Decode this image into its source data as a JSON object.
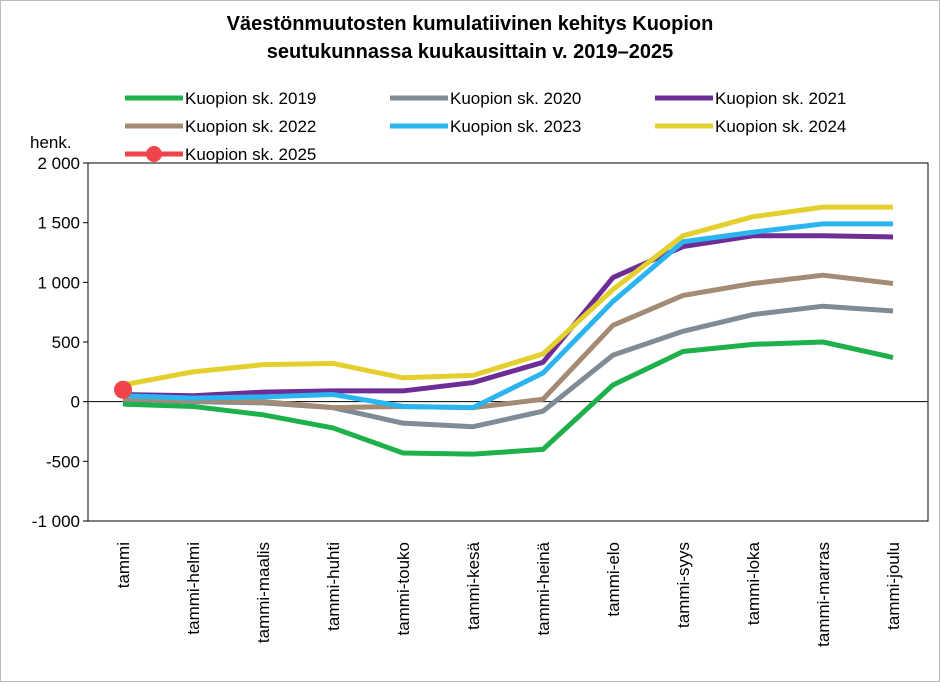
{
  "chart_data": {
    "type": "line",
    "title_lines": [
      "Väestönmuutosten kumulatiivinen kehitys Kuopion",
      "seutukunnassa kuukausittain v. 2019–2025"
    ],
    "y_label": "henk.",
    "categories": [
      "tammi",
      "tammi-helmi",
      "tammi-maalis",
      "tammi-huhti",
      "tammi-touko",
      "tammi-kesä",
      "tammi-heinä",
      "tammi-elo",
      "tammi-syys",
      "tammi-loka",
      "tammi-marras",
      "tammi-joulu"
    ],
    "series": [
      {
        "name": "Kuopion sk. 2019",
        "color": "#1db04b",
        "values": [
          -20,
          -40,
          -110,
          -220,
          -430,
          -440,
          -400,
          140,
          420,
          480,
          500,
          370
        ]
      },
      {
        "name": "Kuopion sk. 2020",
        "color": "#7f8c96",
        "values": [
          20,
          0,
          -10,
          -50,
          -180,
          -210,
          -80,
          390,
          590,
          730,
          800,
          760
        ]
      },
      {
        "name": "Kuopion sk. 2021",
        "color": "#6e2d96",
        "values": [
          60,
          50,
          80,
          90,
          90,
          160,
          330,
          1040,
          1300,
          1390,
          1390,
          1380
        ]
      },
      {
        "name": "Kuopion sk. 2022",
        "color": "#a48b75",
        "values": [
          30,
          10,
          0,
          -50,
          -40,
          -50,
          20,
          640,
          890,
          990,
          1060,
          990
        ]
      },
      {
        "name": "Kuopion sk. 2023",
        "color": "#2ab5f0",
        "values": [
          50,
          30,
          40,
          60,
          -40,
          -50,
          240,
          840,
          1340,
          1420,
          1490,
          1490
        ]
      },
      {
        "name": "Kuopion sk. 2024",
        "color": "#e3cf2e",
        "values": [
          140,
          250,
          310,
          320,
          200,
          220,
          400,
          940,
          1390,
          1550,
          1630,
          1630
        ]
      },
      {
        "name": "Kuopion sk. 2025",
        "color": "#f0434a",
        "marker": true,
        "values": [
          100,
          null,
          null,
          null,
          null,
          null,
          null,
          null,
          null,
          null,
          null,
          null
        ]
      }
    ],
    "ylim": [
      -1000,
      2000
    ],
    "yticks": [
      {
        "value": -1000,
        "label": "-1 000"
      },
      -500,
      0,
      500,
      {
        "value": 1000,
        "label": "1 000"
      },
      {
        "value": 1500,
        "label": "1 500"
      },
      {
        "value": 2000,
        "label": "2 000"
      }
    ]
  }
}
